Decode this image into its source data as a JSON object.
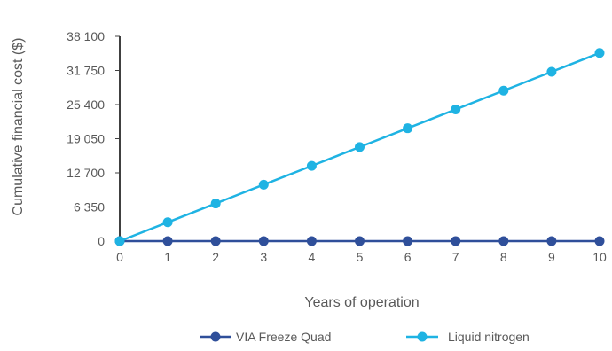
{
  "chart_data": {
    "type": "line",
    "xlabel": "Years of operation",
    "ylabel": "Cumulative financial cost ($)",
    "x": [
      0,
      1,
      2,
      3,
      4,
      5,
      6,
      7,
      8,
      9,
      10
    ],
    "xlim": [
      0,
      10
    ],
    "ylim": [
      0,
      38100
    ],
    "yticks": [
      0,
      6350,
      12700,
      19050,
      25400,
      31750,
      38100
    ],
    "ytick_labels": [
      "0",
      "6 350",
      "12 700",
      "19 050",
      "25 400",
      "31 750",
      "38 100"
    ],
    "xtick_labels": [
      "0",
      "1",
      "2",
      "3",
      "4",
      "5",
      "6",
      "7",
      "8",
      "9",
      "10"
    ],
    "grid": false,
    "legend_position": "bottom",
    "series": [
      {
        "name": "VIA Freeze Quad",
        "color": "#2F4F9A",
        "values": [
          0,
          0,
          0,
          0,
          0,
          0,
          0,
          0,
          0,
          0,
          0
        ]
      },
      {
        "name": "Liquid nitrogen",
        "color": "#1FB3E3",
        "values": [
          0,
          3500,
          7000,
          10500,
          14000,
          17500,
          21000,
          24500,
          28000,
          31500,
          35000
        ]
      }
    ]
  }
}
